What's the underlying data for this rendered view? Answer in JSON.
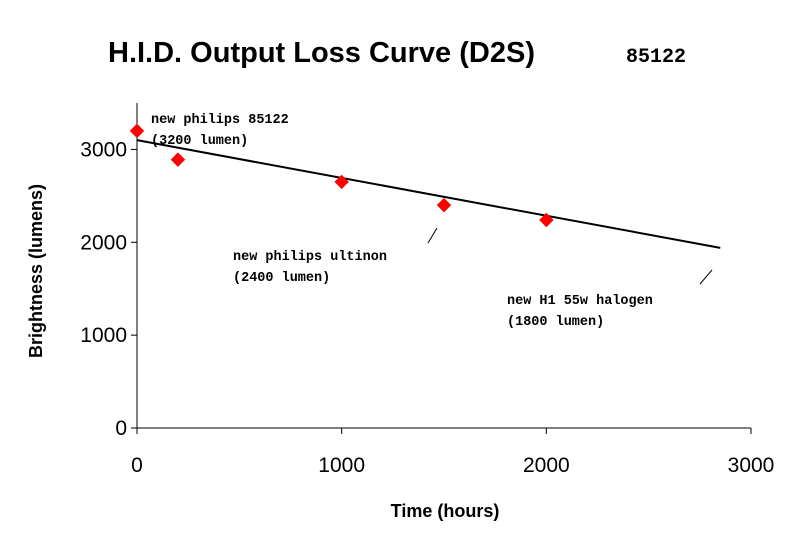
{
  "chart_data": {
    "type": "scatter",
    "title": "H.I.D. Output Loss Curve (D2S)",
    "title_code": "85122",
    "xlabel": "Time (hours)",
    "ylabel": "Brightness (lumens)",
    "xlim": [
      0,
      3000
    ],
    "ylim": [
      0,
      3500
    ],
    "x_ticks": [
      0,
      1000,
      2000,
      3000
    ],
    "y_ticks": [
      0,
      1000,
      2000,
      3000
    ],
    "grid": false,
    "legend": "none",
    "series": [
      {
        "kind": "markers",
        "marker": "diamond",
        "color": "#ff0000",
        "x": [
          0,
          200,
          1000,
          1500,
          2000
        ],
        "y": [
          3200,
          2890,
          2650,
          2400,
          2240
        ]
      },
      {
        "kind": "trend-line",
        "color": "#000000",
        "x": [
          0,
          2850
        ],
        "y": [
          3100,
          1940
        ]
      }
    ],
    "annotations": [
      {
        "lines": [
          "new philips 85122",
          "(3200 lumen)"
        ]
      },
      {
        "lines": [
          "new philips ultinon",
          "(2400 lumen)"
        ]
      },
      {
        "lines": [
          "new H1 55w halogen",
          "(1800 lumen)"
        ]
      }
    ]
  }
}
